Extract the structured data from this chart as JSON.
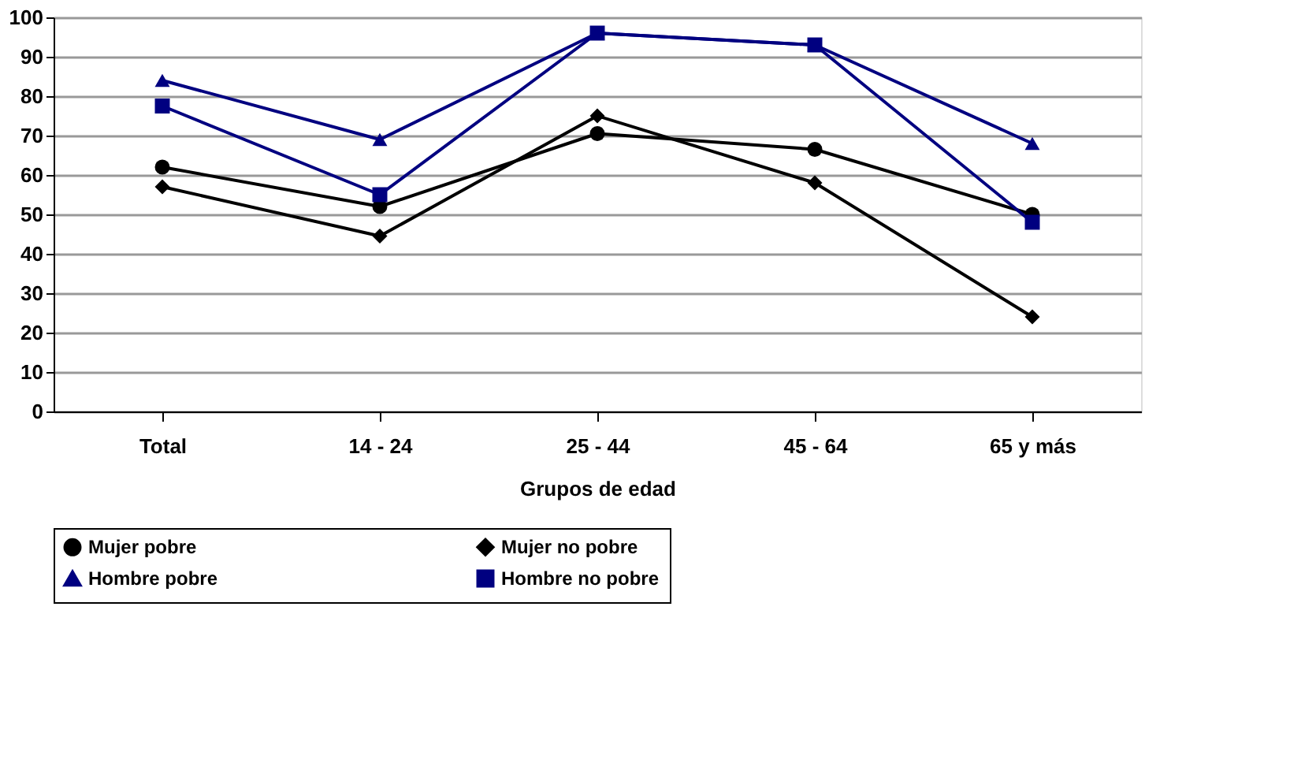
{
  "chart_data": {
    "type": "line",
    "xlabel": "Grupos de edad",
    "categories": [
      "Total",
      "14 - 24",
      "25 - 44",
      "45 - 64",
      "65 y más"
    ],
    "series": [
      {
        "name": "Mujer pobre",
        "color": "#000000",
        "marker": "circle",
        "values": [
          62,
          52,
          70.5,
          66.5,
          50
        ]
      },
      {
        "name": "Mujer no pobre",
        "color": "#000000",
        "marker": "diamond",
        "values": [
          57,
          44.5,
          75,
          58,
          24
        ]
      },
      {
        "name": "Hombre pobre",
        "color": "#000080",
        "marker": "triangle",
        "values": [
          84,
          69,
          96,
          93,
          68
        ]
      },
      {
        "name": "Hombre no pobre",
        "color": "#000080",
        "marker": "square",
        "values": [
          77.5,
          55,
          96,
          93,
          48
        ]
      }
    ],
    "ylim": [
      0,
      100
    ],
    "yticks": [
      0,
      10,
      20,
      30,
      40,
      50,
      60,
      70,
      80,
      90,
      100
    ],
    "grid": "y",
    "legend": "bottom",
    "line_style": "solid"
  }
}
